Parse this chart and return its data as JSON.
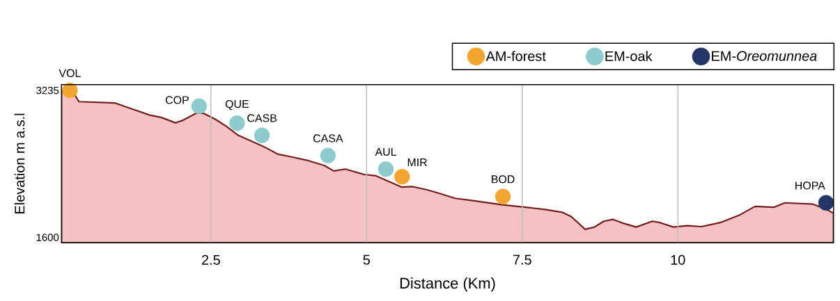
{
  "chart_data": {
    "type": "area",
    "xlabel": "Distance (Km)",
    "ylabel": "Elevation m a.s.l",
    "xlim": [
      0.1,
      12.5
    ],
    "ylim": [
      1540,
      3300
    ],
    "xticks": [
      2.5,
      5,
      7.5,
      10
    ],
    "yticks": [
      3235,
      1600
    ],
    "grid": "x",
    "legend": "top right",
    "series": [
      {
        "color": "#f4c2c2",
        "x": [
          0.1,
          0.3,
          0.38,
          0.96,
          1.33,
          1.52,
          1.7,
          1.93,
          2.04,
          2.27,
          2.38,
          2.57,
          2.75,
          2.94,
          3.2,
          3.39,
          3.58,
          3.8,
          4.03,
          4.32,
          4.47,
          4.66,
          4.96,
          5.15,
          5.33,
          5.56,
          5.74,
          5.97,
          6.19,
          6.42,
          6.75,
          7.16,
          7.5,
          7.87,
          8.14,
          8.29,
          8.51,
          8.66,
          8.81,
          8.96,
          9.11,
          9.33,
          9.59,
          9.71,
          9.93,
          10.15,
          10.38,
          10.68,
          10.98,
          11.24,
          11.54,
          11.72,
          12.17,
          12.36,
          12.5
        ],
        "values": [
          3230,
          3200,
          3110,
          3095,
          3005,
          2960,
          2935,
          2875,
          2900,
          2985,
          2980,
          2915,
          2835,
          2735,
          2655,
          2595,
          2525,
          2495,
          2460,
          2400,
          2340,
          2360,
          2300,
          2285,
          2230,
          2160,
          2165,
          2130,
          2085,
          2035,
          2005,
          1965,
          1940,
          1910,
          1880,
          1830,
          1690,
          1715,
          1780,
          1800,
          1760,
          1715,
          1780,
          1765,
          1715,
          1730,
          1720,
          1765,
          1845,
          1945,
          1935,
          1985,
          1970,
          1920,
          1870
        ]
      },
      {
        "type": "scatter",
        "name": "AM-forest",
        "color": "#f2a531",
        "marker": "circle",
        "x": [
          0.235,
          5.57,
          7.19
        ],
        "values": [
          3235,
          2275,
          2055
        ]
      },
      {
        "type": "scatter",
        "name": "EM-oak",
        "color": "#8dcbcd",
        "marker": "circle",
        "x": [
          2.31,
          2.92,
          3.32,
          4.38,
          5.31
        ],
        "values": [
          3060,
          2870,
          2735,
          2510,
          2360
        ]
      },
      {
        "type": "scatter",
        "name": "EM-*Oreomunnea*",
        "color": "#243567",
        "marker": "circle",
        "x": [
          12.38
        ],
        "values": [
          1985
        ]
      }
    ],
    "annotations": [
      {
        "text": "VOL",
        "x": 0.235,
        "y": 3235
      },
      {
        "text": "COP",
        "x": 2.31,
        "y": 3060
      },
      {
        "text": "QUE",
        "x": 2.92,
        "y": 2870
      },
      {
        "text": "CASB",
        "x": 3.32,
        "y": 2735
      },
      {
        "text": "CASA",
        "x": 4.38,
        "y": 2510
      },
      {
        "text": "AUL",
        "x": 5.31,
        "y": 2360
      },
      {
        "text": "MIR",
        "x": 5.57,
        "y": 2275
      },
      {
        "text": "BOD",
        "x": 7.19,
        "y": 2055
      },
      {
        "text": "HOPA",
        "x": 12.38,
        "y": 1985
      }
    ]
  }
}
